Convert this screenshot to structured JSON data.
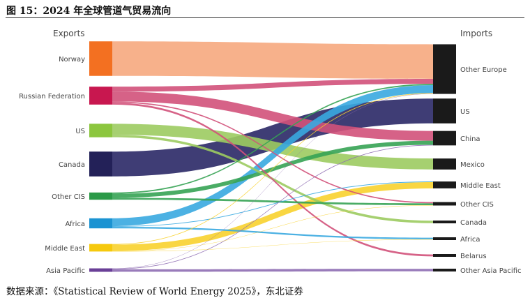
{
  "figure": {
    "title": "图 15：2024 年全球管道气贸易流向",
    "source": "数据来源：《Statistical Review of World Energy 2025》，东北证券"
  },
  "chart_data": {
    "type": "sankey",
    "left_header": "Exports",
    "right_header": "Imports",
    "exporters": [
      {
        "id": "norway",
        "label": "Norway",
        "color": "#f37021",
        "flow_color": "#f6a87e"
      },
      {
        "id": "russia",
        "label": "Russian Federation",
        "color": "#c8174f",
        "flow_color": "#d2517a"
      },
      {
        "id": "us",
        "label": "US",
        "color": "#8cc63e",
        "flow_color": "#9ccb60"
      },
      {
        "id": "canada",
        "label": "Canada",
        "color": "#232158",
        "flow_color": "#2a2866"
      },
      {
        "id": "othercis",
        "label": "Other CIS",
        "color": "#2b9a48",
        "flow_color": "#36a354"
      },
      {
        "id": "africa",
        "label": "Africa",
        "color": "#1b93d2",
        "flow_color": "#38a8e0"
      },
      {
        "id": "middleeast",
        "label": "Middle East",
        "color": "#f6c90e",
        "flow_color": "#f8d22e"
      },
      {
        "id": "asiapacific",
        "label": "Asia Pacific",
        "color": "#6a3f97",
        "flow_color": "#8e6db3"
      }
    ],
    "importers": [
      {
        "id": "othereurope",
        "label": "Other Europe",
        "color": "#1a1a1a"
      },
      {
        "id": "us",
        "label": "US",
        "color": "#1a1a1a"
      },
      {
        "id": "china",
        "label": "China",
        "color": "#1a1a1a"
      },
      {
        "id": "mexico",
        "label": "Mexico",
        "color": "#1a1a1a"
      },
      {
        "id": "middleeast",
        "label": "Middle East",
        "color": "#1a1a1a"
      },
      {
        "id": "othercis",
        "label": "Other CIS",
        "color": "#1a1a1a"
      },
      {
        "id": "canada",
        "label": "Canada",
        "color": "#1a1a1a"
      },
      {
        "id": "africa",
        "label": "Africa",
        "color": "#1a1a1a"
      },
      {
        "id": "belarus",
        "label": "Belarus",
        "color": "#1a1a1a"
      },
      {
        "id": "otherasiapacific",
        "label": "Other Asia Pacific",
        "color": "#1a1a1a"
      }
    ],
    "flows": [
      {
        "from": "norway",
        "to": "othereurope",
        "value": 110
      },
      {
        "from": "russia",
        "to": "othereurope",
        "value": 16
      },
      {
        "from": "russia",
        "to": "china",
        "value": 31
      },
      {
        "from": "russia",
        "to": "othercis",
        "value": 4
      },
      {
        "from": "russia",
        "to": "belarus",
        "value": 6
      },
      {
        "from": "us",
        "to": "mexico",
        "value": 35
      },
      {
        "from": "us",
        "to": "canada",
        "value": 8
      },
      {
        "from": "canada",
        "to": "us",
        "value": 79
      },
      {
        "from": "othercis",
        "to": "china",
        "value": 13
      },
      {
        "from": "othercis",
        "to": "othereurope",
        "value": 4
      },
      {
        "from": "othercis",
        "to": "othercis",
        "value": 6
      },
      {
        "from": "africa",
        "to": "othereurope",
        "value": 25
      },
      {
        "from": "africa",
        "to": "africa",
        "value": 5
      },
      {
        "from": "africa",
        "to": "middleeast",
        "value": 2
      },
      {
        "from": "middleeast",
        "to": "middleeast",
        "value": 20
      },
      {
        "from": "middleeast",
        "to": "othereurope",
        "value": 2
      },
      {
        "from": "middleeast",
        "to": "othercis",
        "value": 1
      },
      {
        "from": "middleeast",
        "to": "africa",
        "value": 1
      },
      {
        "from": "asiapacific",
        "to": "otherasiapacific",
        "value": 8
      },
      {
        "from": "asiapacific",
        "to": "china",
        "value": 2
      },
      {
        "from": "asiapacific",
        "to": "othereurope",
        "value": 1
      }
    ]
  }
}
